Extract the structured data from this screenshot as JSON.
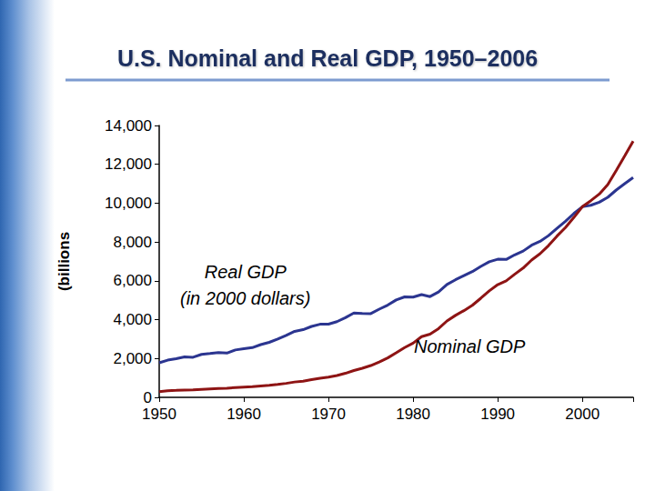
{
  "chart_data": {
    "type": "line",
    "title": "U.S. Nominal and Real GDP, 1950–2006",
    "y_label": "(billions",
    "x": [
      1950,
      1951,
      1952,
      1953,
      1954,
      1955,
      1956,
      1957,
      1958,
      1959,
      1960,
      1961,
      1962,
      1963,
      1964,
      1965,
      1966,
      1967,
      1968,
      1969,
      1970,
      1971,
      1972,
      1973,
      1974,
      1975,
      1976,
      1977,
      1978,
      1979,
      1980,
      1981,
      1982,
      1983,
      1984,
      1985,
      1986,
      1987,
      1988,
      1989,
      1990,
      1991,
      1992,
      1993,
      1994,
      1995,
      1996,
      1997,
      1998,
      1999,
      2000,
      2001,
      2002,
      2003,
      2004,
      2005,
      2006
    ],
    "series": [
      {
        "name": "Real GDP\n(in 2000 dollars)",
        "color": "#2b3590",
        "values": [
          1777,
          1915,
          1988,
          2080,
          2065,
          2213,
          2256,
          2301,
          2279,
          2441,
          2502,
          2560,
          2715,
          2834,
          2999,
          3191,
          3399,
          3485,
          3653,
          3765,
          3772,
          3898,
          4105,
          4342,
          4320,
          4311,
          4541,
          4751,
          5015,
          5173,
          5162,
          5292,
          5189,
          5424,
          5814,
          6054,
          6264,
          6475,
          6743,
          6981,
          7113,
          7101,
          7337,
          7533,
          7836,
          8032,
          8329,
          8704,
          9067,
          9470,
          9817,
          9891,
          10049,
          10301,
          10676,
          11004,
          11319
        ]
      },
      {
        "name": "Nominal GDP",
        "color": "#8e1414",
        "values": [
          294,
          339,
          358,
          379,
          381,
          415,
          438,
          461,
          467,
          507,
          527,
          545,
          586,
          618,
          664,
          720,
          790,
          834,
          911,
          985,
          1039,
          1127,
          1238,
          1383,
          1500,
          1638,
          1825,
          2031,
          2295,
          2563,
          2790,
          3128,
          3255,
          3537,
          3933,
          4220,
          4463,
          4740,
          5104,
          5484,
          5803,
          5996,
          6338,
          6657,
          7072,
          7398,
          7817,
          8304,
          8747,
          9268,
          9817,
          10128,
          10470,
          10961,
          11686,
          12434,
          13195
        ]
      }
    ],
    "xlim": [
      1950,
      2006
    ],
    "xticks": [
      1950,
      1960,
      1970,
      1980,
      1990,
      2000
    ],
    "ylim": [
      0,
      14000
    ],
    "yticks": [
      0,
      {
        "value": 2000,
        "label": "2,000"
      },
      {
        "value": 4000,
        "label": "4,000"
      },
      {
        "value": 6000,
        "label": "6,000"
      },
      {
        "value": 8000,
        "label": "8,000"
      },
      {
        "value": 10000,
        "label": "10,000"
      },
      {
        "value": 12000,
        "label": "12,000"
      },
      {
        "value": 14000,
        "label": "14,000"
      }
    ],
    "grid": false
  }
}
